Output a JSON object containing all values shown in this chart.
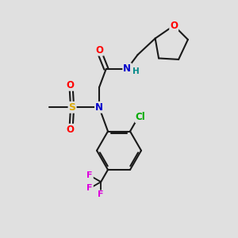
{
  "background_color": "#e0e0e0",
  "bond_color": "#1a1a1a",
  "atom_colors": {
    "O": "#ff0000",
    "N": "#0000cc",
    "S": "#ddaa00",
    "Cl": "#00aa00",
    "F": "#dd00dd",
    "C": "#1a1a1a",
    "H": "#008888"
  },
  "figsize": [
    3.0,
    3.0
  ],
  "dpi": 100
}
